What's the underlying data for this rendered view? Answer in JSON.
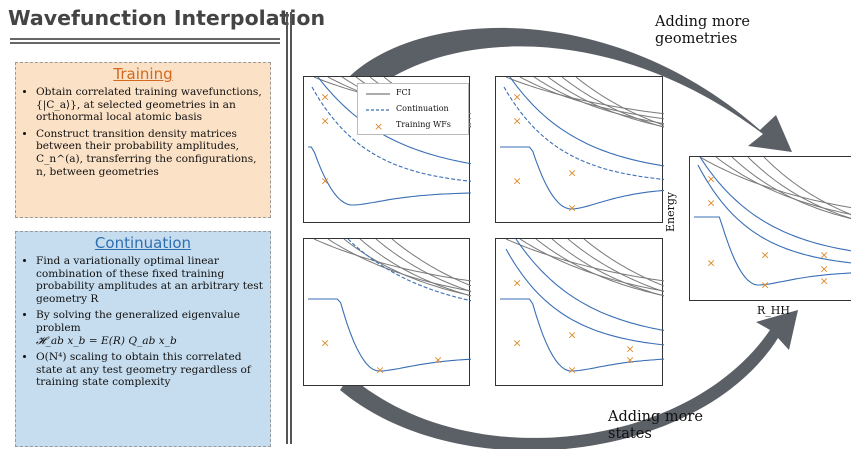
{
  "title": "Wavefunction Interpolation",
  "training": {
    "title": "Training",
    "bullets": [
      "Obtain correlated training wavefunctions, {|C_a⟩}, at selected geometries in an orthonormal local atomic basis",
      "Construct transition density matrices between their probability amplitudes, C_n^(a), transferring the configurations, n, between geometries"
    ]
  },
  "continuation": {
    "title": "Continuation",
    "bullets": [
      "Find a variationally optimal linear combination of these fixed training probability amplitudes at an arbitrary test geometry R",
      "By solving the generalized eigenvalue problem",
      "𝓗_ab x_b = E(R) Q_ab x_b",
      "O(N⁴) scaling to obtain this correlated state at any test geometry regardless of training state complexity"
    ]
  },
  "notes": {
    "top": [
      "Adding more",
      "geometries"
    ],
    "bottom": [
      "Adding more",
      "states"
    ]
  },
  "legend": {
    "items": [
      "FCI",
      "Continuation",
      "Training WFs"
    ]
  },
  "result_plot": {
    "ylabel": "Energy",
    "xlabel": "R_HH"
  },
  "colors": {
    "fci": "#7a7a7a",
    "continuation": "#3a6fb5",
    "training": "#e08a2a",
    "arrow": "#5b5f66",
    "training_box": "#fbe1c6",
    "continuation_box": "#c6ddef"
  }
}
